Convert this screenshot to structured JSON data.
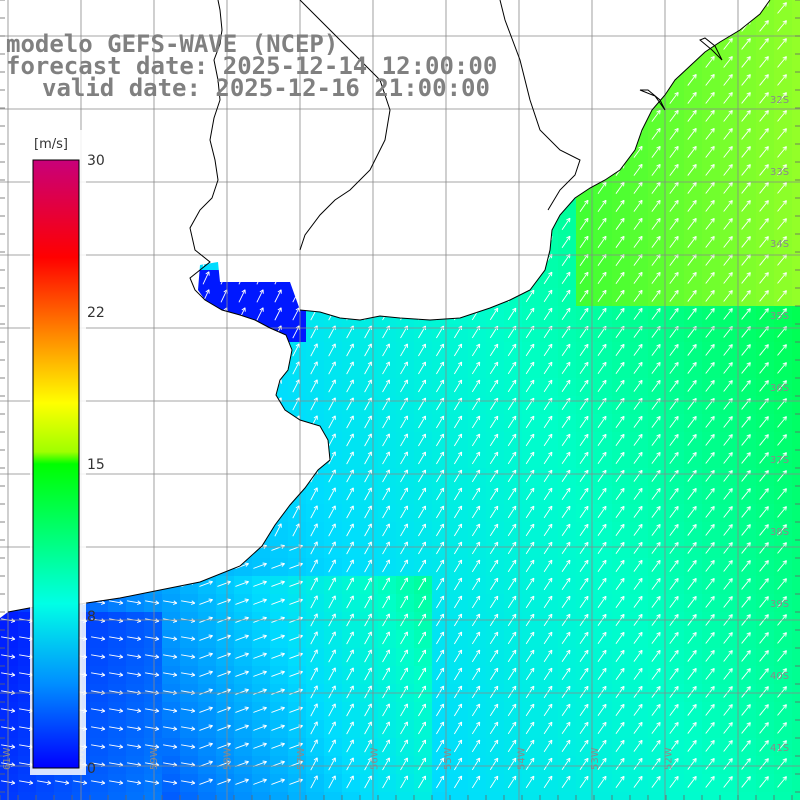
{
  "title": {
    "line1": "modelo GEFS-WAVE (NCEP)",
    "line2": "forecast date: 2025-12-14 12:00:00",
    "line3": "valid date: 2025-12-16 21:00:00"
  },
  "colorbar": {
    "unit": "[m/s]",
    "ticks": [
      "30",
      "22",
      "15",
      "8",
      "0"
    ],
    "colors": [
      "#0000ff",
      "#00c8ff",
      "#00ffe6",
      "#00ff00",
      "#ffff00",
      "#ff8000",
      "#ff0000",
      "#c8006e"
    ]
  },
  "axes": {
    "lat_labels": [
      "32S",
      "33S",
      "34S",
      "35S",
      "36S",
      "37S",
      "38S",
      "39S",
      "40S",
      "41S"
    ],
    "lon_labels": [
      "61W",
      "60W",
      "59W",
      "58W",
      "57W",
      "56W",
      "55W",
      "54W",
      "53W",
      "52W"
    ]
  },
  "map": {
    "variable": "wind speed and direction",
    "land_color": "#ffffff",
    "coastline_color": "#000000",
    "grid_color": "#888888"
  }
}
